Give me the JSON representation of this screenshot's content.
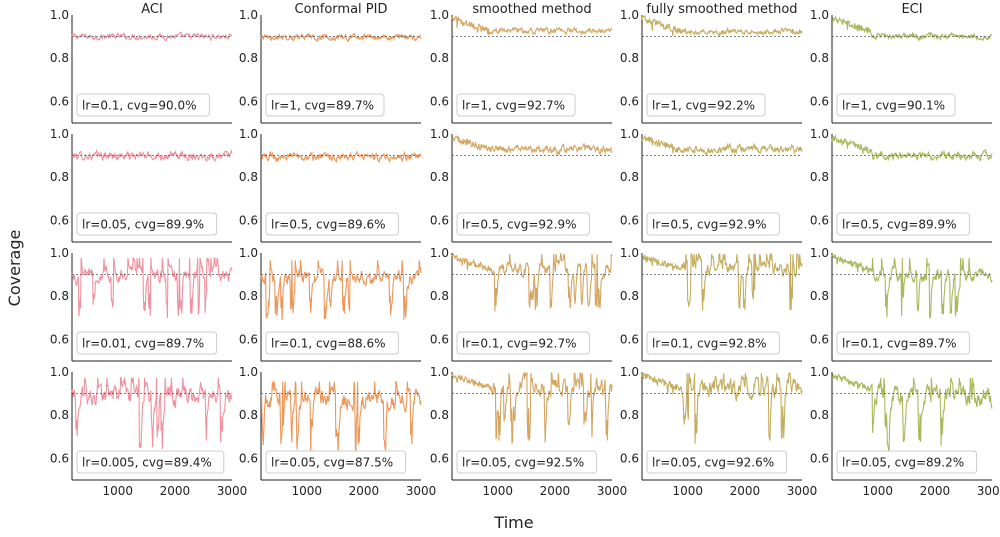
{
  "figure": {
    "xlabel": "Time",
    "ylabel": "Coverage"
  },
  "chart_data": {
    "type": "line",
    "layout": "4x5 small multiples",
    "target_coverage": 0.9,
    "xlim": [
      200,
      3000
    ],
    "ylim": [
      0.5,
      1.0
    ],
    "x_ticks": [
      1000,
      2000,
      3000
    ],
    "y_ticks": [
      0.6,
      0.8,
      1.0
    ],
    "y_tick_labels": [
      "0.6",
      "0.8",
      "1.0"
    ],
    "reference_line": "dashed at 0.9",
    "grid": false,
    "columns": [
      {
        "title": "ACI",
        "color": "#f0919f"
      },
      {
        "title": "Conformal PID",
        "color": "#ec9659"
      },
      {
        "title": "smoothed method",
        "color": "#d4a561"
      },
      {
        "title": "fully smoothed method",
        "color": "#c3ad5e"
      },
      {
        "title": "ECI",
        "color": "#a9b85c"
      }
    ],
    "panels": [
      [
        {
          "label": "lr=0.1, cvg=90.0%",
          "lr": 0.1,
          "cvg": 90.0
        },
        {
          "label": "lr=1, cvg=89.7%",
          "lr": 1,
          "cvg": 89.7
        },
        {
          "label": "lr=1, cvg=92.7%",
          "lr": 1,
          "cvg": 92.7
        },
        {
          "label": "lr=1, cvg=92.2%",
          "lr": 1,
          "cvg": 92.2
        },
        {
          "label": "lr=1, cvg=90.1%",
          "lr": 1,
          "cvg": 90.1
        }
      ],
      [
        {
          "label": "lr=0.05, cvg=89.9%",
          "lr": 0.05,
          "cvg": 89.9
        },
        {
          "label": "lr=0.5, cvg=89.6%",
          "lr": 0.5,
          "cvg": 89.6
        },
        {
          "label": "lr=0.5, cvg=92.9%",
          "lr": 0.5,
          "cvg": 92.9
        },
        {
          "label": "lr=0.5, cvg=92.9%",
          "lr": 0.5,
          "cvg": 92.9
        },
        {
          "label": "lr=0.5, cvg=89.9%",
          "lr": 0.5,
          "cvg": 89.9
        }
      ],
      [
        {
          "label": "lr=0.01, cvg=89.7%",
          "lr": 0.01,
          "cvg": 89.7
        },
        {
          "label": "lr=0.1, cvg=88.6%",
          "lr": 0.1,
          "cvg": 88.6
        },
        {
          "label": "lr=0.1, cvg=92.7%",
          "lr": 0.1,
          "cvg": 92.7
        },
        {
          "label": "lr=0.1, cvg=92.8%",
          "lr": 0.1,
          "cvg": 92.8
        },
        {
          "label": "lr=0.1, cvg=89.7%",
          "lr": 0.1,
          "cvg": 89.7
        }
      ],
      [
        {
          "label": "lr=0.005, cvg=89.4%",
          "lr": 0.005,
          "cvg": 89.4
        },
        {
          "label": "lr=0.05, cvg=87.5%",
          "lr": 0.05,
          "cvg": 87.5
        },
        {
          "label": "lr=0.05, cvg=92.5%",
          "lr": 0.05,
          "cvg": 92.5
        },
        {
          "label": "lr=0.05, cvg=92.6%",
          "lr": 0.05,
          "cvg": 92.6
        },
        {
          "label": "lr=0.05, cvg=89.2%",
          "lr": 0.05,
          "cvg": 89.2
        }
      ]
    ]
  }
}
